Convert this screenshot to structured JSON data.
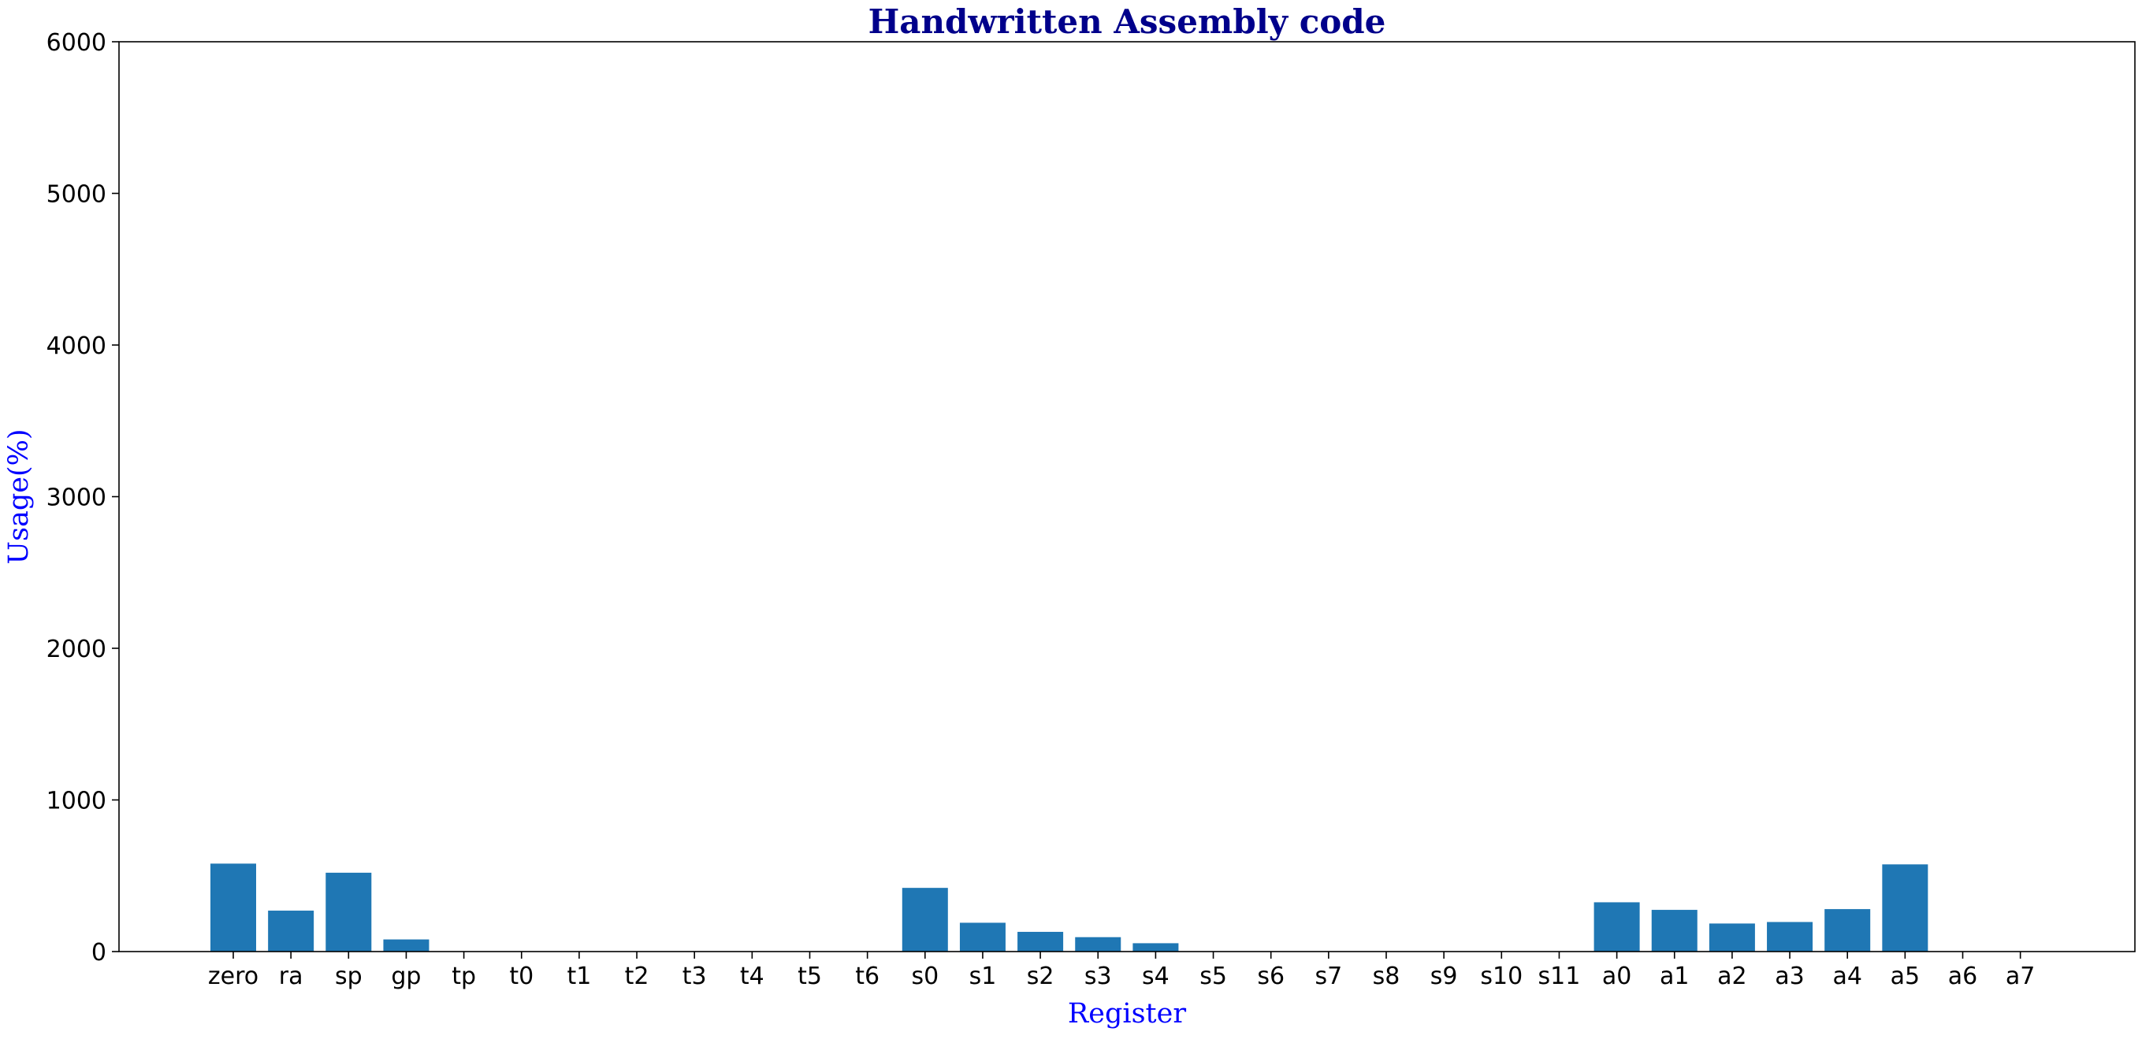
{
  "colors": {
    "bar": "#1f77b4",
    "title": "#00008b",
    "axis_label": "#0000ff",
    "axis_line": "#000000",
    "tick_text": "#000000",
    "background": "#ffffff"
  },
  "chart_data": {
    "type": "bar",
    "title": "Handwritten Assembly code",
    "xlabel": "Register",
    "ylabel": "Usage(%)",
    "ylim": [
      0,
      6000
    ],
    "yticks": [
      0,
      1000,
      2000,
      3000,
      4000,
      5000,
      6000
    ],
    "grid": false,
    "legend": "none",
    "categories": [
      "zero",
      "ra",
      "sp",
      "gp",
      "tp",
      "t0",
      "t1",
      "t2",
      "t3",
      "t4",
      "t5",
      "t6",
      "s0",
      "s1",
      "s2",
      "s3",
      "s4",
      "s5",
      "s6",
      "s7",
      "s8",
      "s9",
      "s10",
      "s11",
      "a0",
      "a1",
      "a2",
      "a3",
      "a4",
      "a5",
      "a6",
      "a7"
    ],
    "values": [
      580,
      270,
      520,
      80,
      0,
      0,
      0,
      0,
      0,
      0,
      0,
      0,
      420,
      190,
      130,
      95,
      55,
      0,
      0,
      0,
      0,
      0,
      0,
      0,
      325,
      275,
      185,
      195,
      280,
      575,
      0,
      0
    ]
  }
}
